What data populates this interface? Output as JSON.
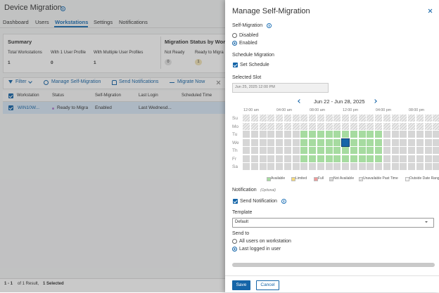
{
  "page": {
    "title": "Device Migration",
    "tabs": [
      "Dashboard",
      "Users",
      "Workstations",
      "Settings",
      "Notifications"
    ],
    "summary": {
      "title": "Summary",
      "stats": [
        {
          "label": "Total Workstations",
          "value": 1
        },
        {
          "label": "With 1 User Profile",
          "value": 0
        },
        {
          "label": "With Multiple User Profiles",
          "value": 1
        }
      ]
    },
    "migration_status": {
      "title": "Migration Status by Works",
      "stats": [
        {
          "label": "Not Ready",
          "value": 0
        },
        {
          "label": "Ready to Migra",
          "value": 1
        }
      ]
    },
    "toolbar": [
      "Filter",
      "Manage Self-Migration",
      "Send Notifications",
      "Migrate Now"
    ],
    "table": {
      "columns": [
        "Workstation",
        "Status",
        "Self-Migration",
        "Last Login",
        "Scheduled Time"
      ],
      "rows": [
        [
          "WIN10W...",
          "Ready to Migra",
          "Enabled",
          "Last Wednesd..."
        ]
      ]
    },
    "footer": {
      "range": "1 - 1",
      "total": "of 1 Result,",
      "selected": "1 Selected"
    }
  },
  "dialog": {
    "title": "Manage Self-Migration",
    "self_migration": {
      "label": "Self-Migration",
      "options": [
        "Disabled",
        "Enabled"
      ]
    },
    "schedule": {
      "label": "Schedule Migration",
      "checkbox": "Set Schedule",
      "slot_label": "Selected Slot",
      "slot_value": "Jun 25, 2025 12:00 PM",
      "week": "Jun 22 - Jun 28, 2025",
      "hours": [
        "12:00 am",
        "04:00 am",
        "08:00 am",
        "12:00 pm",
        "04:00 pm",
        "08:00 pm"
      ],
      "days": [
        "Su",
        "Mo",
        "Tu",
        "We",
        "Th",
        "Fr",
        "Sa"
      ],
      "legend": [
        "Available",
        "Limited",
        "Full",
        "Not Available",
        "Unavailable Past Time",
        "Outside Date Range"
      ]
    },
    "notification": {
      "label": "Notification",
      "optional": "(Optional)",
      "checkbox": "Send Notification",
      "template_label": "Template",
      "template_value": "Default",
      "send_to_label": "Send to",
      "send_to_options": [
        "All users on workstation",
        "Last logged in user"
      ]
    },
    "buttons": [
      "Save",
      "Cancel"
    ]
  }
}
